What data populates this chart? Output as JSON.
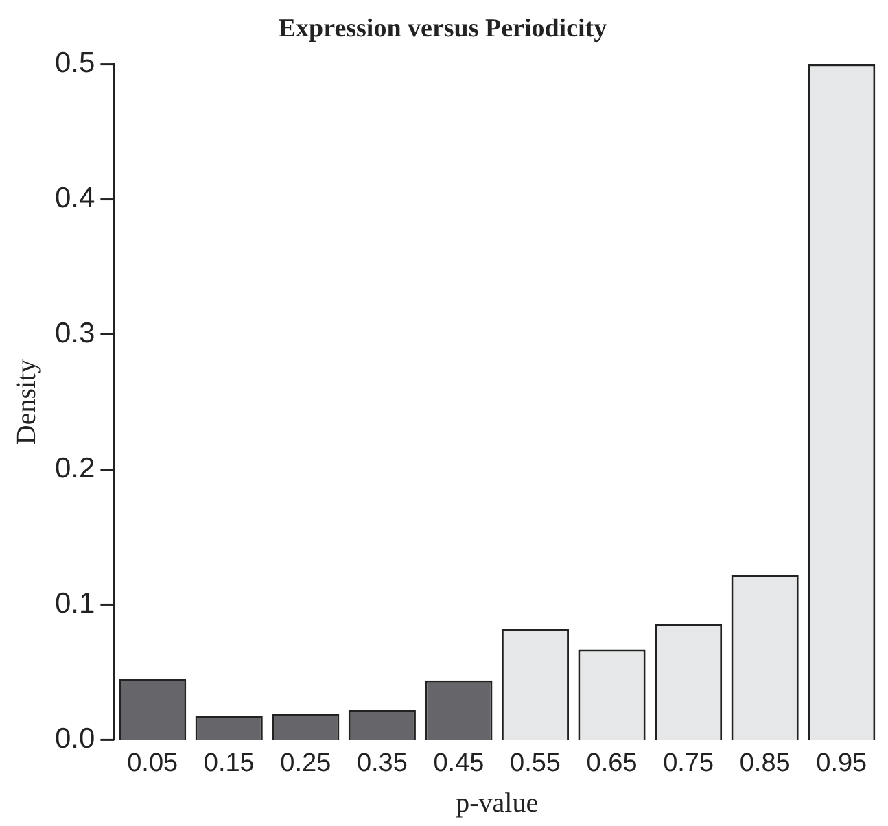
{
  "chart_data": {
    "type": "bar",
    "title": "Expression versus Periodicity",
    "xlabel": "p-value",
    "ylabel": "Density",
    "categories": [
      "0.05",
      "0.15",
      "0.25",
      "0.35",
      "0.45",
      "0.55",
      "0.65",
      "0.75",
      "0.85",
      "0.95"
    ],
    "values": [
      0.045,
      0.018,
      0.019,
      0.022,
      0.044,
      0.082,
      0.067,
      0.086,
      0.122,
      0.5
    ],
    "colors": [
      "#66666a",
      "#66666a",
      "#66666a",
      "#66666a",
      "#66666a",
      "#e6e7e8",
      "#e6e7e8",
      "#e6e7e8",
      "#e6e7e8",
      "#e6e7e8"
    ],
    "ylim": [
      0,
      0.5
    ],
    "yticks": [
      {
        "value": 0,
        "label": "0.0"
      },
      {
        "value": 0.1,
        "label": "0.1"
      },
      {
        "value": 0.2,
        "label": "0.2"
      },
      {
        "value": 0.3,
        "label": "0.3"
      },
      {
        "value": 0.4,
        "label": "0.4"
      },
      {
        "value": 0.5,
        "label": "0.5"
      }
    ],
    "grid": false,
    "legend": false
  }
}
